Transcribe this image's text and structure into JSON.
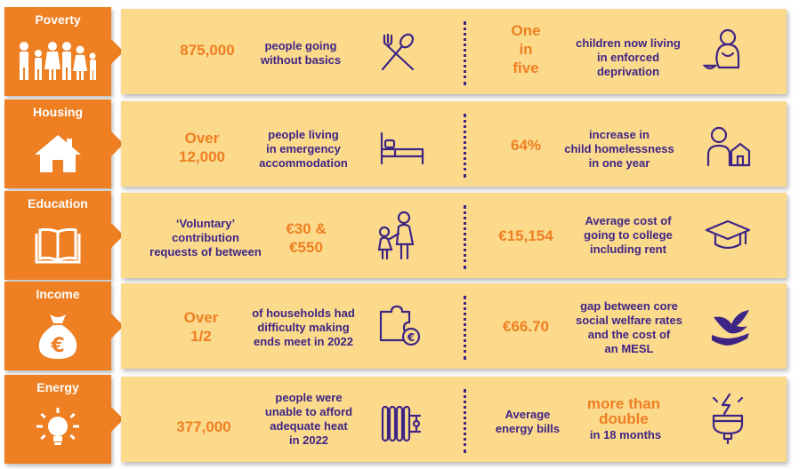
{
  "rows": [
    {
      "category": "Poverty",
      "left_stat": "875,000",
      "left_text": [
        "people going",
        "without basics"
      ],
      "left_icon": "cutlery-icon",
      "right_stat": [
        "One",
        "in",
        "five"
      ],
      "right_text": [
        "children now living",
        "in enforced",
        "deprivation"
      ],
      "right_icon": "sad-child-icon"
    },
    {
      "category": "Housing",
      "left_stat": [
        "Over",
        "12,000"
      ],
      "left_text": [
        "people living",
        "in emergency",
        "accommodation"
      ],
      "left_icon": "bed-icon",
      "right_stat": "64%",
      "right_text": [
        "increase in",
        "child homelessness",
        "in one year"
      ],
      "right_icon": "child-house-icon"
    },
    {
      "category": "Education",
      "left_text": [
        "‘Voluntary’",
        "contribution",
        "requests of between"
      ],
      "left_stat": [
        "€30 &",
        "€550"
      ],
      "left_icon": "parent-child-icon",
      "right_stat": "€15,154",
      "right_text": [
        "Average cost of",
        "going to college",
        "including rent"
      ],
      "right_icon": "graduation-cap-icon"
    },
    {
      "category": "Income",
      "left_stat": [
        "Over",
        "1/2"
      ],
      "left_text": [
        "of households had",
        "difficulty making",
        "ends meet in 2022"
      ],
      "left_icon": "puzzle-euro-icon",
      "right_stat": "€66.70",
      "right_text": [
        "gap between core",
        "social welfare rates",
        "and the cost of",
        "an MESL"
      ],
      "right_icon": "bird-hands-icon"
    },
    {
      "category": "Energy",
      "left_stat": "377,000",
      "left_text": [
        "people were",
        "unable to afford",
        "adequate heat",
        "in 2022"
      ],
      "left_icon": "radiator-icon",
      "right_text": [
        "Average",
        "energy bills"
      ],
      "right_stat": [
        "more than",
        "double"
      ],
      "right_text2": "in 18 months",
      "right_icon": "energy-plug-icon"
    }
  ],
  "colors": {
    "orange": "#EE7F22",
    "panel": "#FCDA8C",
    "purple": "#3E2585"
  }
}
